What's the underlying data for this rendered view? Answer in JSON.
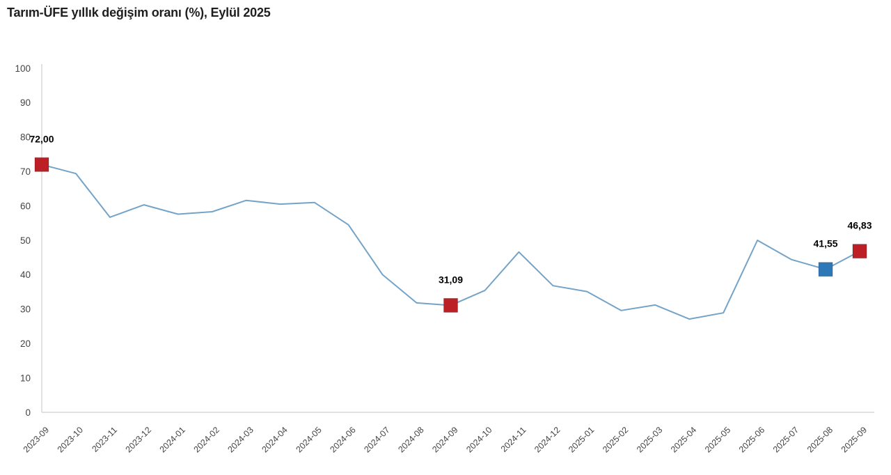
{
  "header": {
    "title": "Tarım-ÜFE yıllık değişim oranı (%), Eylül 2025"
  },
  "chart_data": {
    "type": "line",
    "title": "Tarım-ÜFE yıllık değişim oranı (%), Eylül 2025",
    "xlabel": "",
    "ylabel": "",
    "ylim": [
      0,
      100
    ],
    "yticks": [
      0,
      10,
      20,
      30,
      40,
      50,
      60,
      70,
      80,
      90,
      100
    ],
    "grid": false,
    "legend": "none",
    "categories": [
      "2023-09",
      "2023-10",
      "2023-11",
      "2023-12",
      "2024-01",
      "2024-02",
      "2024-03",
      "2024-04",
      "2024-05",
      "2024-06",
      "2024-07",
      "2024-08",
      "2024-09",
      "2024-10",
      "2024-11",
      "2024-12",
      "2025-01",
      "2025-02",
      "2025-03",
      "2025-04",
      "2025-05",
      "2025-06",
      "2025-07",
      "2025-08",
      "2025-09"
    ],
    "series": [
      {
        "name": "Tarım-ÜFE yıllık değişim oranı (%)",
        "values": [
          72.0,
          69.4,
          56.7,
          60.3,
          57.6,
          58.3,
          61.6,
          60.5,
          61.0,
          54.5,
          40.0,
          31.8,
          31.09,
          35.4,
          46.6,
          36.8,
          35.1,
          29.6,
          31.2,
          27.1,
          28.9,
          50.0,
          44.4,
          41.55,
          46.83
        ]
      }
    ],
    "annotations": [
      {
        "index": 0,
        "label": "72,00",
        "marker": "square",
        "color": "#bc2026"
      },
      {
        "index": 12,
        "label": "31,09",
        "marker": "square",
        "color": "#bc2026"
      },
      {
        "index": 23,
        "label": "41,55",
        "marker": "square",
        "color": "#2e78b8"
      },
      {
        "index": 24,
        "label": "46,83",
        "marker": "square",
        "color": "#bc2026"
      }
    ],
    "colors": {
      "line": "#74a3c8",
      "axis": "#d6d6d6",
      "tick_label": "#444444",
      "data_label": "#000000",
      "marker_red": "#bc2026",
      "marker_blue": "#2e78b8"
    }
  }
}
